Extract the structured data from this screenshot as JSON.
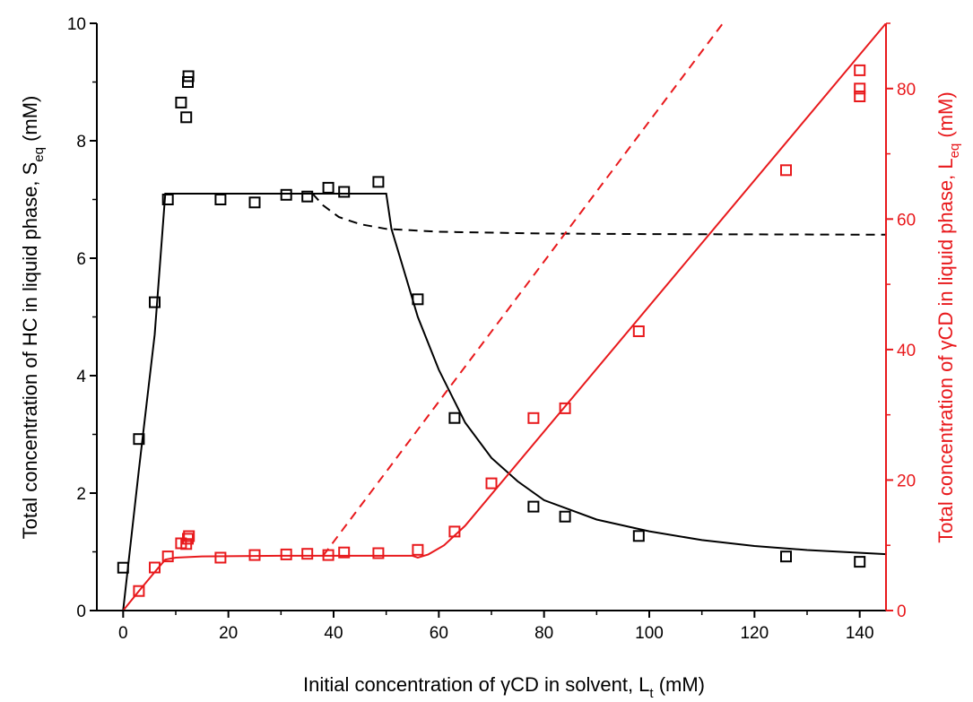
{
  "chart_data": {
    "type": "scatter",
    "xlabel_parts": [
      "Initial concentration of ",
      "γ",
      "CD in solvent, L",
      "t",
      " (mM)"
    ],
    "ylabel_left_parts": [
      "Total concentration of HC in liquid phase, S",
      "eq",
      "  (mM)"
    ],
    "ylabel_right_parts": [
      "Total concentration of ",
      "γ",
      "CD in liquid phase, L",
      "eq",
      "  (mM)"
    ],
    "xlim": [
      -5,
      145
    ],
    "ylim_left": [
      0,
      10
    ],
    "ylim_right": [
      0,
      90
    ],
    "x_ticks": [
      0,
      20,
      40,
      60,
      80,
      100,
      120,
      140
    ],
    "y_left_ticks": [
      0,
      2,
      4,
      6,
      8,
      10
    ],
    "y_right_ticks": [
      0,
      20,
      40,
      60,
      80
    ],
    "grid": false,
    "legend": "none",
    "colors": {
      "hc": "#000000",
      "cd": "#e8191c"
    },
    "series": [
      {
        "axis": "left",
        "color": "#000000",
        "style": "markers",
        "points": [
          [
            0,
            0.73
          ],
          [
            3,
            2.92
          ],
          [
            6,
            5.25
          ],
          [
            8.5,
            7.0
          ],
          [
            11,
            8.65
          ],
          [
            12,
            8.4
          ],
          [
            12.3,
            9.0
          ],
          [
            12.4,
            9.1
          ],
          [
            18.5,
            7.0
          ],
          [
            25,
            6.95
          ],
          [
            31,
            7.08
          ],
          [
            35,
            7.05
          ],
          [
            39,
            7.2
          ],
          [
            42,
            7.13
          ],
          [
            48.5,
            7.3
          ],
          [
            56,
            5.3
          ],
          [
            63,
            3.28
          ],
          [
            78,
            1.77
          ],
          [
            84,
            1.6
          ],
          [
            98,
            1.27
          ],
          [
            126,
            0.92
          ],
          [
            140,
            0.83
          ]
        ]
      },
      {
        "axis": "right",
        "color": "#e8191c",
        "style": "markers",
        "points": [
          [
            3,
            3.0
          ],
          [
            6,
            6.6
          ],
          [
            8.5,
            8.3
          ],
          [
            11,
            10.3
          ],
          [
            12,
            10.2
          ],
          [
            12.3,
            11.0
          ],
          [
            12.5,
            11.4
          ],
          [
            18.5,
            8.1
          ],
          [
            25,
            8.5
          ],
          [
            31,
            8.6
          ],
          [
            35,
            8.7
          ],
          [
            39,
            8.5
          ],
          [
            42,
            8.9
          ],
          [
            48.5,
            8.8
          ],
          [
            56,
            9.3
          ],
          [
            63,
            12.1
          ],
          [
            70,
            19.5
          ],
          [
            78,
            29.5
          ],
          [
            84,
            31.0
          ],
          [
            98,
            42.8
          ],
          [
            126,
            67.5
          ],
          [
            140,
            78.8
          ],
          [
            140,
            80.0
          ],
          [
            140,
            82.8
          ]
        ]
      },
      {
        "axis": "left",
        "color": "#000000",
        "style": "solid",
        "points": [
          [
            0,
            0.0
          ],
          [
            3,
            2.4
          ],
          [
            6,
            4.7
          ],
          [
            8,
            7.1
          ],
          [
            50,
            7.1
          ],
          [
            51,
            6.5
          ],
          [
            53,
            5.9
          ],
          [
            56,
            5.0
          ],
          [
            60,
            4.1
          ],
          [
            65,
            3.2
          ],
          [
            70,
            2.6
          ],
          [
            75,
            2.2
          ],
          [
            80,
            1.88
          ],
          [
            90,
            1.55
          ],
          [
            100,
            1.35
          ],
          [
            110,
            1.2
          ],
          [
            120,
            1.1
          ],
          [
            130,
            1.03
          ],
          [
            145,
            0.96
          ]
        ]
      },
      {
        "axis": "left",
        "color": "#000000",
        "style": "dashed",
        "points": [
          [
            36,
            7.1
          ],
          [
            38,
            6.9
          ],
          [
            41,
            6.7
          ],
          [
            45,
            6.58
          ],
          [
            50,
            6.5
          ],
          [
            60,
            6.45
          ],
          [
            80,
            6.42
          ],
          [
            100,
            6.41
          ],
          [
            145,
            6.4
          ]
        ]
      },
      {
        "axis": "right",
        "color": "#e8191c",
        "style": "solid",
        "points": [
          [
            0,
            0.0
          ],
          [
            3,
            3.0
          ],
          [
            6,
            5.9
          ],
          [
            8,
            7.8
          ],
          [
            10,
            8.1
          ],
          [
            15,
            8.3
          ],
          [
            30,
            8.4
          ],
          [
            50,
            8.4
          ],
          [
            55,
            8.4
          ],
          [
            56,
            8.1
          ],
          [
            58,
            8.6
          ],
          [
            61,
            10.0
          ],
          [
            65,
            13.0
          ],
          [
            145,
            90.0
          ]
        ]
      },
      {
        "axis": "right",
        "color": "#e8191c",
        "style": "dashed",
        "points": [
          [
            38,
            8.4
          ],
          [
            114,
            90.0
          ]
        ]
      }
    ]
  }
}
